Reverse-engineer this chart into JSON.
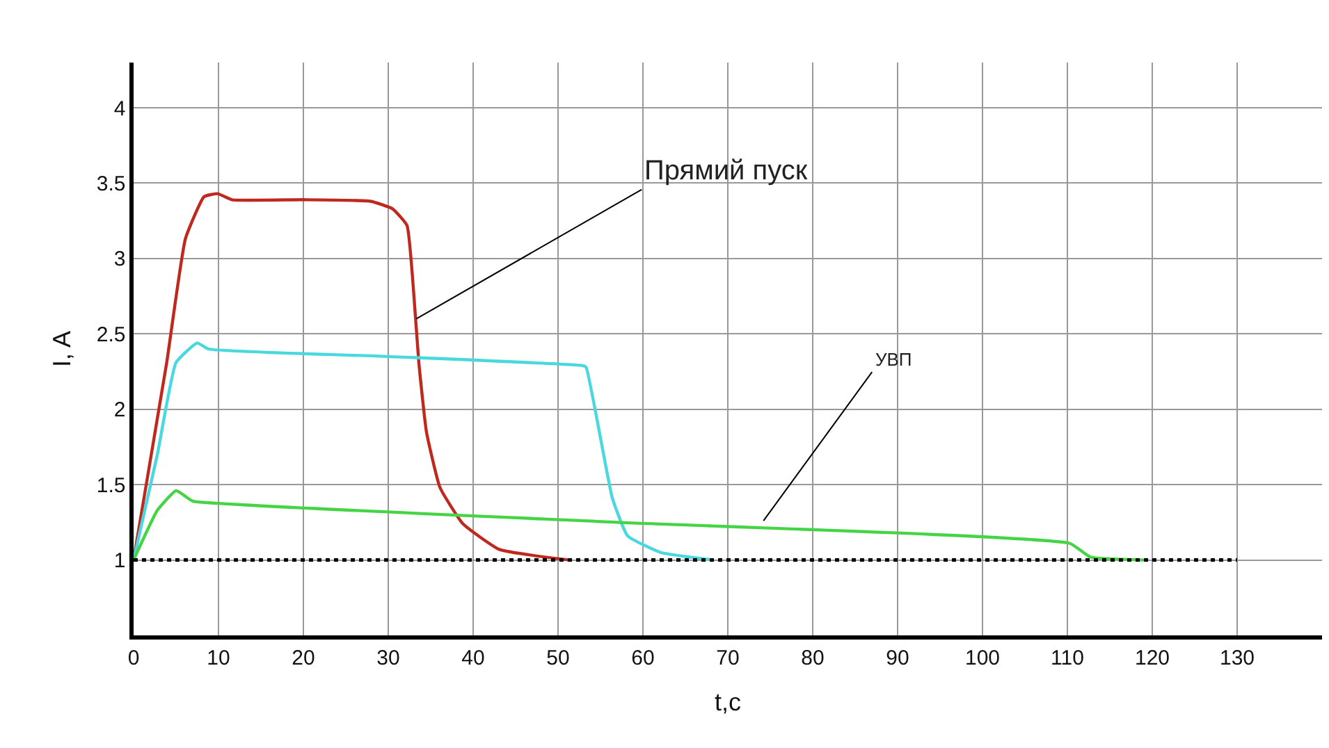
{
  "chart_data": {
    "type": "line",
    "xlabel": "t,c",
    "ylabel": "I, A",
    "xlim": [
      0,
      140
    ],
    "xticks": [
      0,
      10,
      20,
      30,
      40,
      50,
      60,
      70,
      80,
      90,
      100,
      110,
      120,
      130
    ],
    "ylim": [
      0.5,
      4.3
    ],
    "yticks": [
      1,
      1.5,
      2,
      2.5,
      3,
      3.5,
      4
    ],
    "grid": true,
    "marker": "none",
    "line_style": "solid",
    "series": [
      {
        "color": "#c0281e",
        "x": [
          0,
          3.9,
          6.1,
          8.3,
          9.9,
          11.6,
          20,
          27.9,
          30.5,
          32.2,
          33,
          33.6,
          34.5,
          36.1,
          38.8,
          43.1,
          51.3
        ],
        "values": [
          1,
          2.31,
          3.13,
          3.41,
          3.43,
          3.39,
          3.39,
          3.38,
          3.33,
          3.22,
          2.77,
          2.31,
          1.85,
          1.48,
          1.24,
          1.07,
          1.0
        ]
      },
      {
        "color": "#48d8e0",
        "x": [
          0,
          2.8,
          5,
          7.5,
          8.8,
          30,
          52.9,
          53.3,
          56.4,
          58.2,
          62.1,
          68.3
        ],
        "values": [
          1,
          1.7,
          2.31,
          2.44,
          2.4,
          2.35,
          2.29,
          2.28,
          1.41,
          1.16,
          1.05,
          1.0
        ]
      },
      {
        "color": "#44d444",
        "x": [
          0,
          2.8,
          5,
          6.4,
          7,
          57,
          110.3,
          112.7,
          119
        ],
        "values": [
          1,
          1.33,
          1.46,
          1.41,
          1.39,
          1.25,
          1.11,
          1.02,
          1.0
        ]
      }
    ],
    "ref_lines": [
      {
        "axis": "y",
        "value": 1,
        "color": "#000000",
        "line_style": "dotted"
      }
    ],
    "annotations": [
      {
        "text": "Прямий пуск",
        "x": 33.3,
        "y": 2.6
      },
      {
        "text": "УВП",
        "x": 74.2,
        "y": 1.26
      }
    ]
  }
}
